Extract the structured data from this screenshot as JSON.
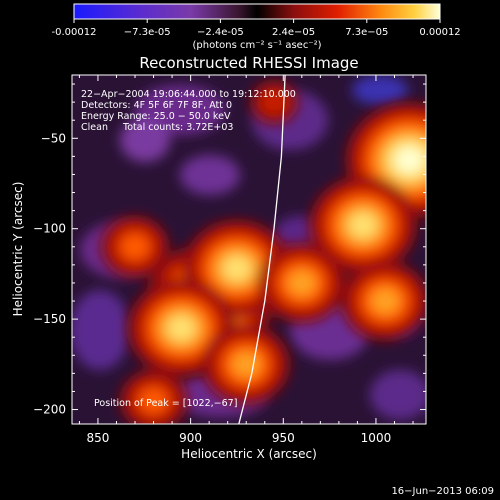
{
  "chart_data": {
    "type": "heatmap",
    "title": "Reconstructed RHESSI Image",
    "colorbar": {
      "ticks": [
        "-0.00012",
        "−7.3e-05",
        "−2.4e-05",
        "2.4e−05",
        "7.3e−05",
        "0.00012"
      ],
      "range": [
        -0.00012,
        0.00012
      ],
      "unit_label": "(photons cm⁻² s⁻¹ asec⁻²)"
    },
    "xlabel": "Heliocentric X (arcsec)",
    "ylabel": "Heliocentric Y (arcsec)",
    "xticks": [
      "850",
      "900",
      "950",
      "1000"
    ],
    "xtick_values": [
      850,
      900,
      950,
      1000
    ],
    "yticks": [
      "−50",
      "−100",
      "−150",
      "−200"
    ],
    "ytick_values": [
      -50,
      -100,
      -150,
      -200
    ],
    "xlim": [
      836,
      1027
    ],
    "ylim": [
      -208,
      -15
    ],
    "annotations": [
      "22−Apr−2004 19:06:44.000 to 19:12:10.000",
      "Detectors: 4F 5F 6F 7F 8F, Att 0",
      "Energy Range: 25.0 − 50.0 keV",
      "Clean     Total counts: 3.72E+03"
    ],
    "peak_label": "Position of Peak = [1022,−67]",
    "limb_curve": [
      [
        951,
        -15
      ],
      [
        949,
        -60
      ],
      [
        945,
        -100
      ],
      [
        940,
        -140
      ],
      [
        933,
        -180
      ],
      [
        926,
        -208
      ]
    ],
    "hot_spots": [
      {
        "x": 910,
        "y": -140,
        "level": 1.0
      },
      {
        "x": 925,
        "y": -122,
        "level": 0.85
      },
      {
        "x": 895,
        "y": -155,
        "level": 0.8
      },
      {
        "x": 1018,
        "y": -62,
        "level": 1.0
      },
      {
        "x": 993,
        "y": -98,
        "level": 0.8
      },
      {
        "x": 1005,
        "y": -140,
        "level": 0.7
      },
      {
        "x": 930,
        "y": -175,
        "level": 0.6
      },
      {
        "x": 870,
        "y": -110,
        "level": 0.55
      },
      {
        "x": 960,
        "y": -130,
        "level": 0.65
      },
      {
        "x": 880,
        "y": -195,
        "level": 0.45
      },
      {
        "x": 945,
        "y": -30,
        "level": 0.4
      }
    ],
    "colors": {
      "background": "#000000",
      "text": "#ffffff",
      "limb": "#ffffff"
    }
  },
  "footer": {
    "date": "16−Jun−2013 06:09"
  }
}
